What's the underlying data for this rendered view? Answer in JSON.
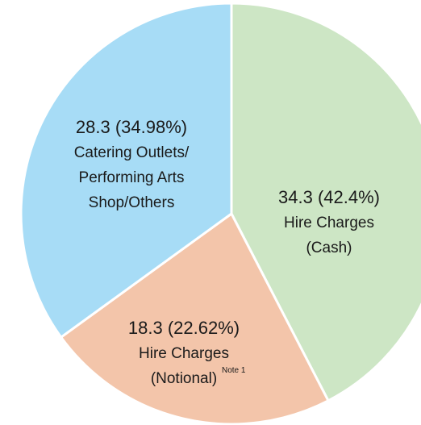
{
  "chart_data": {
    "type": "pie",
    "categories": [
      "Hire Charges (Cash)",
      "Hire Charges (Notional)",
      "Catering Outlets/ Performing Arts Shop/Others"
    ],
    "values": [
      34.3,
      18.3,
      28.3
    ],
    "value_labels": [
      "34.3 (42.4%)",
      "18.3 (22.62%)",
      "28.3 (34.98%)"
    ],
    "colors": [
      "#cde6c5",
      "#f3c5aa",
      "#a7dcf6"
    ],
    "annotation": "Note 1"
  }
}
